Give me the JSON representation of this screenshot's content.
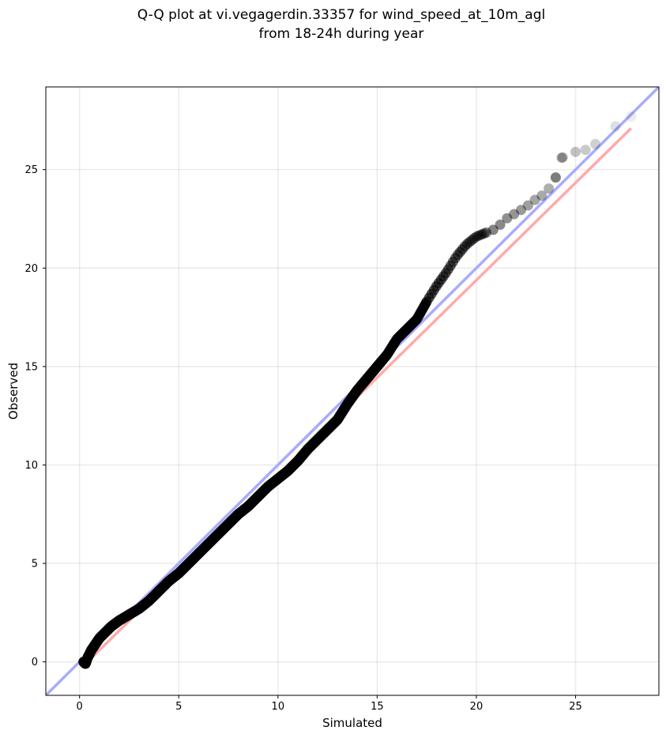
{
  "chart_data": {
    "type": "scatter",
    "title_lines": [
      "Q-Q plot at vi.vegagerdin.33357 for wind_speed_at_10m_agl",
      "from 18-24h during year"
    ],
    "xlabel": "Simulated",
    "ylabel": "Observed",
    "xlim": [
      -1.7,
      29.2
    ],
    "ylim": [
      -1.7,
      29.2
    ],
    "xticks": [
      0,
      5,
      10,
      15,
      20,
      25
    ],
    "yticks": [
      0,
      5,
      10,
      15,
      20,
      25
    ],
    "grid": true,
    "colors": {
      "identity_line": "#aaaaff",
      "fit_line": "#ffaaaa",
      "points": "#000000",
      "bulk_highlight": "#3a2a8a"
    },
    "reference_lines": [
      {
        "kind": "identity",
        "color": "#aaaaff",
        "from": [
          -1.7,
          -1.7
        ],
        "to": [
          29.2,
          29.2
        ]
      },
      {
        "kind": "fit",
        "color": "#ffaaaa",
        "from": [
          0.3,
          -0.1
        ],
        "to": [
          27.8,
          27.1
        ]
      }
    ],
    "quantiles": {
      "x": [
        0.2,
        0.3,
        0.4,
        0.5,
        0.6,
        0.8,
        1.0,
        1.3,
        1.6,
        2.0,
        2.5,
        3.0,
        3.5,
        4.0,
        4.5,
        5.0,
        5.5,
        6.0,
        6.5,
        7.0,
        7.5,
        8.0,
        8.5,
        9.0,
        9.5,
        10.0,
        10.5,
        11.0,
        11.5,
        12.0,
        12.5,
        13.0,
        13.5,
        14.0,
        14.5,
        15.0,
        15.5,
        16.0,
        16.5,
        17.0,
        17.5,
        18.0,
        18.5,
        19.0,
        19.5,
        20.0,
        20.5,
        21.0,
        21.5,
        22.0,
        22.5,
        23.0,
        23.5,
        24.0,
        24.3,
        25.0,
        25.5,
        26.0,
        27.0,
        27.8
      ],
      "y": [
        0.0,
        -0.1,
        0.2,
        0.4,
        0.6,
        0.9,
        1.2,
        1.5,
        1.8,
        2.1,
        2.4,
        2.7,
        3.1,
        3.6,
        4.1,
        4.5,
        5.0,
        5.5,
        6.0,
        6.5,
        7.0,
        7.5,
        7.9,
        8.4,
        8.9,
        9.3,
        9.7,
        10.2,
        10.8,
        11.3,
        11.8,
        12.3,
        13.1,
        13.8,
        14.4,
        15.0,
        15.6,
        16.4,
        16.9,
        17.4,
        18.3,
        19.1,
        19.8,
        20.6,
        21.2,
        21.6,
        21.8,
        22.0,
        22.5,
        22.8,
        23.1,
        23.5,
        23.8,
        24.6,
        25.6,
        25.9,
        26.0,
        26.3,
        27.2,
        27.7
      ]
    }
  }
}
